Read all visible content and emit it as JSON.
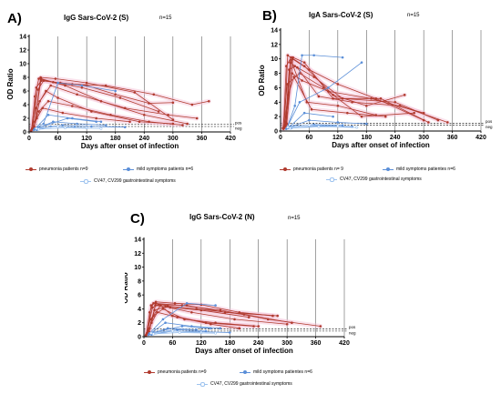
{
  "figure": {
    "panels": [
      {
        "id": "A",
        "letter": "A)",
        "title": "IgG Sars-CoV-2 (S)",
        "n": "n=15"
      },
      {
        "id": "B",
        "letter": "B)",
        "title": "IgA Sars-CoV-2 (S)",
        "n": "n=15"
      },
      {
        "id": "C",
        "letter": "C)",
        "title": "IgG Sars-CoV-2 (N)",
        "n": "n=15"
      }
    ],
    "legends": [
      {
        "pneumonia": "pneumonia patients n=9",
        "mild": "mild symptoms patients n=6",
        "gi": "CV47, CV299 gastrointestinal symptoms"
      },
      {
        "pneumonia": "pneumonia patients n= 9",
        "mild": "mild symptoms patientes n=6",
        "gi": "CV47, CV299 gastrointestinal symptoms"
      },
      {
        "pneumonia": "pneumonia patients n=9",
        "mild": "mild symptoms patientes n=6",
        "gi": "CV47, CV299 gastrointestinal symptoms"
      }
    ],
    "colors": {
      "pneumonia": "#b03a2e",
      "pneumonia_band": "#f4c2d8",
      "mild": "#5b8fd8",
      "gi": "#9ec3ef",
      "axis": "#000000",
      "gridline": "#444444"
    }
  },
  "chart_data": [
    {
      "type": "line",
      "title": "IgG Sars-CoV-2 (S)",
      "xlabel": "Days after onset of infection",
      "ylabel": "OD Ratio",
      "xlim": [
        0,
        420
      ],
      "ylim": [
        0,
        14
      ],
      "xticks": [
        0,
        60,
        120,
        180,
        240,
        300,
        360,
        420
      ],
      "yticks": [
        0,
        2,
        4,
        6,
        8,
        10,
        12,
        14
      ],
      "reference_lines": [
        {
          "label": "pos",
          "y": 1.1
        },
        {
          "label": "neg",
          "y": 0.8
        }
      ],
      "series": [
        {
          "group": "pneumonia",
          "x": [
            8,
            15,
            25,
            65,
            120,
            180,
            250,
            300
          ],
          "y": [
            0.4,
            6.5,
            7.5,
            7.2,
            6.8,
            5.5,
            4.2,
            4.3
          ]
        },
        {
          "group": "pneumonia",
          "x": [
            5,
            12,
            20,
            75,
            150,
            240,
            330
          ],
          "y": [
            0.3,
            5.2,
            7.8,
            6.8,
            4.5,
            2.5,
            1.2
          ]
        },
        {
          "group": "pneumonia",
          "x": [
            6,
            18,
            30,
            90,
            160,
            260,
            340,
            375
          ],
          "y": [
            0.5,
            6.2,
            7.5,
            7.0,
            6.8,
            5.5,
            4.0,
            4.5
          ]
        },
        {
          "group": "pneumonia",
          "x": [
            10,
            22,
            45,
            100,
            200,
            290,
            350
          ],
          "y": [
            0.8,
            4.5,
            6.8,
            5.5,
            3.5,
            2.5,
            2.0
          ]
        },
        {
          "group": "pneumonia",
          "x": [
            4,
            14,
            35,
            60,
            130,
            230,
            300
          ],
          "y": [
            0.2,
            3.5,
            6.0,
            5.0,
            3.0,
            1.5,
            1.2
          ]
        },
        {
          "group": "pneumonia",
          "x": [
            12,
            25,
            50,
            110,
            190,
            270
          ],
          "y": [
            1.5,
            7.8,
            7.3,
            6.5,
            5.0,
            3.0
          ]
        },
        {
          "group": "pneumonia",
          "x": [
            9,
            20,
            40,
            90,
            170,
            250,
            320
          ],
          "y": [
            0.6,
            3.0,
            4.5,
            3.8,
            2.5,
            1.5,
            1.0
          ]
        },
        {
          "group": "pneumonia",
          "x": [
            7,
            16,
            28,
            70,
            140,
            210
          ],
          "y": [
            0.4,
            2.0,
            3.5,
            2.8,
            2.0,
            1.5
          ]
        },
        {
          "group": "pneumonia",
          "x": [
            11,
            24,
            55,
            120,
            220,
            300
          ],
          "y": [
            0.7,
            8.0,
            7.8,
            7.2,
            5.8,
            1.8
          ]
        },
        {
          "group": "mild",
          "x": [
            12,
            30,
            60,
            110,
            180
          ],
          "y": [
            0.5,
            1.2,
            7.2,
            6.8,
            6.0
          ]
        },
        {
          "group": "mild",
          "x": [
            10,
            40,
            90,
            150
          ],
          "y": [
            0.3,
            2.5,
            2.0,
            1.5
          ]
        },
        {
          "group": "mild",
          "x": [
            14,
            50,
            100,
            160
          ],
          "y": [
            0.4,
            1.5,
            1.2,
            1.0
          ]
        },
        {
          "group": "mild",
          "x": [
            16,
            45,
            95
          ],
          "y": [
            0.3,
            0.8,
            0.7
          ]
        },
        {
          "group": "mild",
          "x": [
            18,
            70,
            130,
            200
          ],
          "y": [
            0.5,
            1.0,
            0.8,
            0.7
          ]
        },
        {
          "group": "mild",
          "x": [
            20,
            80,
            140
          ],
          "y": [
            0.6,
            2.0,
            1.5
          ]
        },
        {
          "group": "gi",
          "x": [
            15,
            60,
            120
          ],
          "y": [
            0.5,
            0.8,
            0.6
          ]
        },
        {
          "group": "gi",
          "x": [
            20,
            75,
            150
          ],
          "y": [
            0.4,
            0.6,
            0.5
          ]
        }
      ]
    },
    {
      "type": "line",
      "title": "IgA Sars-CoV-2 (S)",
      "xlabel": "Days after onset of infection",
      "ylabel": "OD Ratio",
      "xlim": [
        0,
        420
      ],
      "ylim": [
        0,
        14
      ],
      "xticks": [
        0,
        60,
        120,
        180,
        240,
        300,
        360,
        420
      ],
      "yticks": [
        0,
        2,
        4,
        6,
        8,
        10,
        12,
        14
      ],
      "reference_lines": [
        {
          "label": "pos",
          "y": 1.1
        },
        {
          "label": "neg",
          "y": 0.8
        }
      ],
      "series": [
        {
          "group": "pneumonia",
          "x": [
            8,
            15,
            25,
            60,
            120,
            200,
            300
          ],
          "y": [
            0.5,
            10.5,
            10.0,
            8.5,
            6.5,
            4.5,
            1.5
          ]
        },
        {
          "group": "pneumonia",
          "x": [
            6,
            12,
            22,
            50,
            110,
            180,
            260
          ],
          "y": [
            0.3,
            9.0,
            10.2,
            9.0,
            5.0,
            3.5,
            5.0
          ]
        },
        {
          "group": "pneumonia",
          "x": [
            10,
            18,
            30,
            70,
            130,
            240,
            330
          ],
          "y": [
            0.8,
            8.5,
            9.0,
            7.5,
            4.5,
            4.0,
            1.5
          ]
        },
        {
          "group": "pneumonia",
          "x": [
            5,
            14,
            40,
            90,
            170,
            280
          ],
          "y": [
            0.4,
            6.5,
            8.0,
            6.0,
            2.0,
            2.5
          ]
        },
        {
          "group": "pneumonia",
          "x": [
            12,
            20,
            35,
            80,
            150,
            250,
            350
          ],
          "y": [
            1.2,
            9.5,
            8.8,
            4.8,
            4.0,
            3.5,
            1.2
          ]
        },
        {
          "group": "pneumonia",
          "x": [
            9,
            24,
            45,
            100,
            190,
            300
          ],
          "y": [
            0.6,
            8.0,
            7.0,
            5.5,
            4.5,
            2.5
          ]
        },
        {
          "group": "pneumonia",
          "x": [
            7,
            16,
            28,
            65,
            140,
            220
          ],
          "y": [
            0.4,
            5.0,
            7.5,
            3.0,
            2.5,
            2.0
          ]
        },
        {
          "group": "pneumonia",
          "x": [
            11,
            22,
            55,
            120,
            200
          ],
          "y": [
            0.7,
            9.8,
            4.0,
            3.5,
            2.2
          ]
        },
        {
          "group": "pneumonia",
          "x": [
            13,
            26,
            50,
            110,
            210,
            310
          ],
          "y": [
            1.0,
            10.2,
            9.5,
            4.5,
            4.5,
            1.2
          ]
        },
        {
          "group": "mild",
          "x": [
            14,
            30,
            45,
            70,
            130
          ],
          "y": [
            0.5,
            3.5,
            10.5,
            10.5,
            10.2
          ]
        },
        {
          "group": "mild",
          "x": [
            12,
            40,
            100,
            170
          ],
          "y": [
            0.3,
            4.0,
            6.0,
            9.5
          ]
        },
        {
          "group": "mild",
          "x": [
            16,
            50,
            110
          ],
          "y": [
            0.4,
            2.5,
            2.0
          ]
        },
        {
          "group": "mild",
          "x": [
            18,
            60,
            120,
            180
          ],
          "y": [
            0.5,
            1.5,
            1.2,
            1.0
          ]
        },
        {
          "group": "mild",
          "x": [
            20,
            70,
            130
          ],
          "y": [
            0.6,
            0.9,
            0.8
          ]
        },
        {
          "group": "mild",
          "x": [
            22,
            80,
            150
          ],
          "y": [
            0.4,
            0.7,
            0.6
          ]
        },
        {
          "group": "gi",
          "x": [
            15,
            60,
            120
          ],
          "y": [
            0.5,
            0.8,
            0.7
          ]
        },
        {
          "group": "gi",
          "x": [
            20,
            80,
            160
          ],
          "y": [
            0.4,
            0.6,
            0.5
          ]
        }
      ]
    },
    {
      "type": "line",
      "title": "IgG Sars-CoV-2 (N)",
      "xlabel": "Days after onset of infection",
      "ylabel": "OD Ratio",
      "xlim": [
        0,
        420
      ],
      "ylim": [
        0,
        14
      ],
      "xticks": [
        0,
        60,
        120,
        180,
        240,
        300,
        360,
        420
      ],
      "yticks": [
        0,
        2,
        4,
        6,
        8,
        10,
        12,
        14
      ],
      "reference_lines": [
        {
          "label": "pos",
          "y": 1.1
        },
        {
          "label": "neg",
          "y": 0.8
        }
      ],
      "series": [
        {
          "group": "pneumonia",
          "x": [
            8,
            15,
            25,
            65,
            120,
            200,
            270
          ],
          "y": [
            0.4,
            4.5,
            5.0,
            4.8,
            4.6,
            3.5,
            3.0
          ]
        },
        {
          "group": "pneumonia",
          "x": [
            5,
            12,
            20,
            80,
            160,
            260,
            370
          ],
          "y": [
            0.3,
            3.5,
            4.8,
            4.5,
            3.8,
            2.5,
            1.5
          ]
        },
        {
          "group": "pneumonia",
          "x": [
            6,
            18,
            30,
            90,
            170,
            280
          ],
          "y": [
            0.5,
            4.2,
            4.6,
            4.5,
            3.5,
            3.0
          ]
        },
        {
          "group": "pneumonia",
          "x": [
            10,
            22,
            45,
            100,
            190,
            300
          ],
          "y": [
            0.8,
            3.8,
            4.3,
            3.5,
            2.5,
            1.8
          ]
        },
        {
          "group": "pneumonia",
          "x": [
            4,
            14,
            35,
            60,
            130,
            230
          ],
          "y": [
            0.2,
            2.5,
            4.5,
            3.0,
            2.0,
            1.5
          ]
        },
        {
          "group": "pneumonia",
          "x": [
            12,
            25,
            50,
            110,
            210,
            310
          ],
          "y": [
            1.2,
            4.8,
            4.4,
            4.0,
            3.2,
            2.0
          ]
        },
        {
          "group": "pneumonia",
          "x": [
            9,
            20,
            40,
            85,
            150,
            240
          ],
          "y": [
            0.6,
            3.0,
            4.0,
            2.5,
            2.0,
            1.5
          ]
        },
        {
          "group": "pneumonia",
          "x": [
            7,
            16,
            28,
            70,
            140,
            200
          ],
          "y": [
            0.4,
            2.0,
            3.5,
            2.8,
            1.8,
            1.2
          ]
        },
        {
          "group": "pneumonia",
          "x": [
            11,
            24,
            55,
            120,
            220
          ],
          "y": [
            0.7,
            4.5,
            4.2,
            3.8,
            2.8
          ]
        },
        {
          "group": "mild",
          "x": [
            12,
            40,
            90,
            150
          ],
          "y": [
            0.5,
            2.5,
            4.8,
            4.5
          ]
        },
        {
          "group": "mild",
          "x": [
            10,
            45,
            100,
            160
          ],
          "y": [
            0.3,
            2.0,
            1.5,
            1.2
          ]
        },
        {
          "group": "mild",
          "x": [
            14,
            50,
            110
          ],
          "y": [
            0.4,
            1.2,
            1.0
          ]
        },
        {
          "group": "mild",
          "x": [
            16,
            60,
            120,
            180
          ],
          "y": [
            0.3,
            0.8,
            0.7,
            0.6
          ]
        },
        {
          "group": "mild",
          "x": [
            18,
            70,
            130
          ],
          "y": [
            0.5,
            1.0,
            0.8
          ]
        },
        {
          "group": "mild",
          "x": [
            20,
            80,
            140
          ],
          "y": [
            0.6,
            1.5,
            1.2
          ]
        },
        {
          "group": "gi",
          "x": [
            15,
            60,
            120
          ],
          "y": [
            0.5,
            0.8,
            0.6
          ]
        },
        {
          "group": "gi",
          "x": [
            20,
            75,
            150
          ],
          "y": [
            0.4,
            0.6,
            0.5
          ]
        }
      ]
    }
  ]
}
